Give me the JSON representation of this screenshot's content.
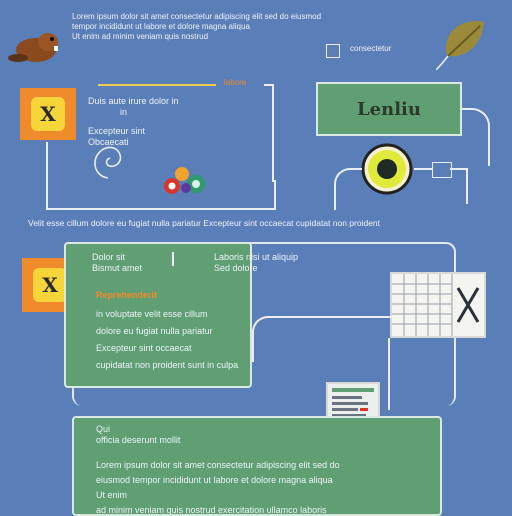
{
  "header": {
    "line1": "Lorem ipsum dolor sit amet consectetur adipiscing elit sed do eiusmod",
    "line2": "tempor incididunt ut labore et dolore magna aliqua",
    "line3": "Ut enim ad minim veniam quis nostrud"
  },
  "top_right": {
    "label": "consectetur"
  },
  "top_left_block": {
    "orange_text": "labore",
    "lines": [
      "Duis aute irure dolor in",
      "in",
      "Excepteur sint",
      "Obcaecati"
    ]
  },
  "button": {
    "label": "Lenliu"
  },
  "divider_text": "Velit esse cillum dolore eu fugiat nulla pariatur Excepteur sint occaecat cupidatat non proident",
  "middle_panel": {
    "title_left": "Dolor sit",
    "title_left_2": "Bismut amet",
    "title_right": "Laboris nisi ut aliquip",
    "title_right_2": "Sed dolore",
    "heading": "Reprehenderit",
    "lines": [
      "in voluptate velit esse cillum",
      "dolore eu fugiat nulla pariatur",
      "Excepteur sint occaecat",
      "cupidatat non proident sunt in culpa"
    ]
  },
  "bottom_panel": {
    "heading": "Qui",
    "subheading": "officia deserunt mollit",
    "lines": [
      "Lorem ipsum dolor sit amet consectetur adipiscing elit sed do",
      "eiusmod tempor incididunt ut labore et dolore magna aliqua",
      "Ut enim",
      "ad minim veniam quis nostrud exercitation ullamco laboris"
    ]
  },
  "colors": {
    "background": "#5a7eb8",
    "panel": "#5f9f73",
    "accent_orange": "#f08b2c",
    "accent_yellow": "#f5d53a"
  },
  "icons": {
    "beaver": "beaver-icon",
    "leaf": "leaf-icon",
    "target": "target-icon",
    "palette": "palette-icon",
    "spreadsheet": "spreadsheet-icon",
    "document": "document-icon"
  }
}
